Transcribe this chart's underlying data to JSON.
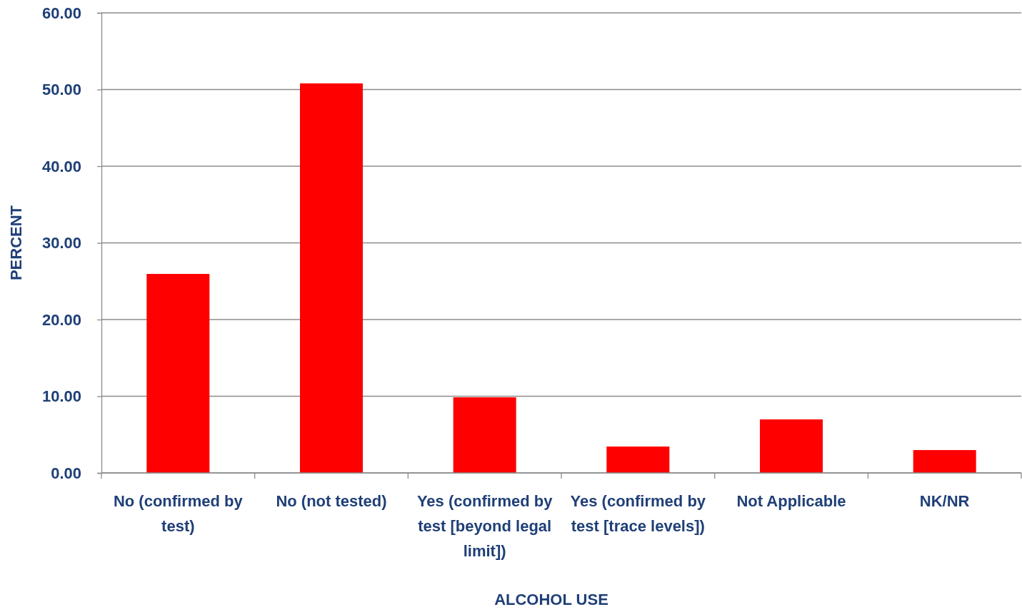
{
  "chart_data": {
    "type": "bar",
    "xlabel": "ALCOHOL USE",
    "ylabel": "PERCENT",
    "categories": [
      "No (confirmed by test)",
      "No (not tested)",
      "Yes (confirmed by test [beyond legal limit])",
      "Yes (confirmed by test [trace levels])",
      "Not Applicable",
      "NK/NR"
    ],
    "values": [
      25.95,
      50.8,
      9.86,
      3.44,
      6.98,
      2.98
    ],
    "color": "#ff0000",
    "ylim": [
      0,
      60
    ],
    "yticks": [
      {
        "value": 0,
        "label": "0.00"
      },
      {
        "value": 10,
        "label": "10.00"
      },
      {
        "value": 20,
        "label": "20.00"
      },
      {
        "value": 30,
        "label": "30.00"
      },
      {
        "value": 40,
        "label": "40.00"
      },
      {
        "value": 50,
        "label": "50.00"
      },
      {
        "value": 60,
        "label": "60.00"
      }
    ],
    "grid": "y"
  }
}
